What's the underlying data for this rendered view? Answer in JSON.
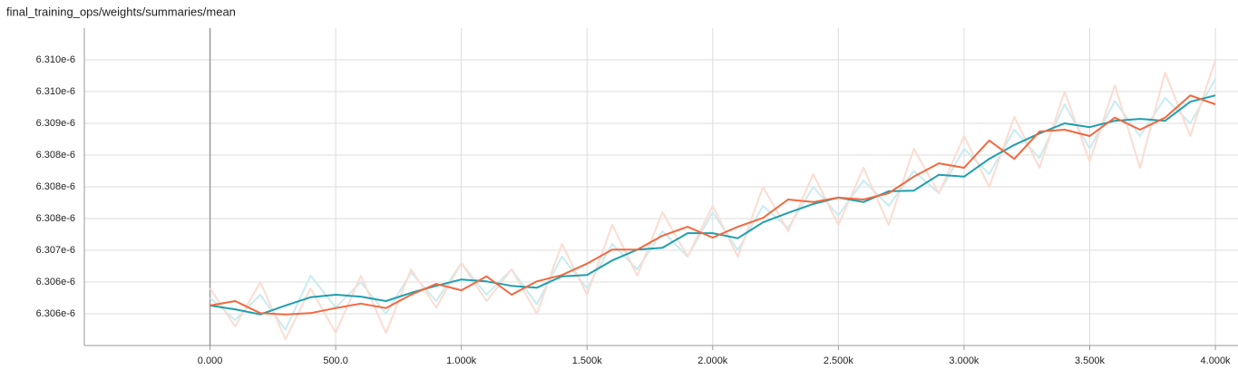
{
  "chart_data": {
    "type": "line",
    "title": "final_training_ops/weights/summaries/mean",
    "x": [
      0,
      100,
      200,
      300,
      400,
      500,
      600,
      700,
      800,
      900,
      1000,
      1100,
      1200,
      1300,
      1400,
      1500,
      1600,
      1700,
      1800,
      1900,
      2000,
      2100,
      2200,
      2300,
      2400,
      2500,
      2600,
      2700,
      2800,
      2900,
      3000,
      3100,
      3200,
      3300,
      3400,
      3500,
      3600,
      3700,
      3800,
      3900,
      4000
    ],
    "xlim": [
      -500,
      4090
    ],
    "xticks": [
      {
        "value": 0,
        "label": "0.000"
      },
      {
        "value": 500,
        "label": "500.0"
      },
      {
        "value": 1000,
        "label": "1.000k"
      },
      {
        "value": 1500,
        "label": "1.500k"
      },
      {
        "value": 2000,
        "label": "2.000k"
      },
      {
        "value": 2500,
        "label": "2.500k"
      },
      {
        "value": 3000,
        "label": "3.000k"
      },
      {
        "value": 3500,
        "label": "3.500k"
      },
      {
        "value": 4000,
        "label": "4.000k"
      }
    ],
    "ylim": [
      6.3055e-06,
      6.3105e-06
    ],
    "yticks": [
      {
        "value": 6.306e-06,
        "label": "6.306e-6"
      },
      {
        "value": 6.3065e-06,
        "label": "6.306e-6"
      },
      {
        "value": 6.307e-06,
        "label": "6.307e-6"
      },
      {
        "value": 6.3075e-06,
        "label": "6.308e-6"
      },
      {
        "value": 6.308e-06,
        "label": "6.308e-6"
      },
      {
        "value": 6.3085e-06,
        "label": "6.308e-6"
      },
      {
        "value": 6.309e-06,
        "label": "6.309e-6"
      },
      {
        "value": 6.3095e-06,
        "label": "6.310e-6"
      },
      {
        "value": 6.31e-06,
        "label": "6.310e-6"
      }
    ],
    "grid": true,
    "series": [
      {
        "color": "#c9ecf0",
        "values": [
          6.30625e-06,
          6.3059e-06,
          6.3063e-06,
          6.30575e-06,
          6.3066e-06,
          6.3061e-06,
          6.3065e-06,
          6.306e-06,
          6.30665e-06,
          6.3062e-06,
          6.3068e-06,
          6.3063e-06,
          6.3067e-06,
          6.30615e-06,
          6.3069e-06,
          6.3064e-06,
          6.3071e-06,
          6.3067e-06,
          6.3073e-06,
          6.3069e-06,
          6.3076e-06,
          6.307e-06,
          6.3077e-06,
          6.30735e-06,
          6.308e-06,
          6.30755e-06,
          6.3081e-06,
          6.3077e-06,
          6.30825e-06,
          6.3079e-06,
          6.3086e-06,
          6.3082e-06,
          6.3089e-06,
          6.30845e-06,
          6.3093e-06,
          6.3086e-06,
          6.30935e-06,
          6.3088e-06,
          6.3094e-06,
          6.309e-06,
          6.3097e-06
        ]
      },
      {
        "color": "#fcdcd2",
        "values": [
          6.3064e-06,
          6.3058e-06,
          6.3065e-06,
          6.3056e-06,
          6.3064e-06,
          6.3057e-06,
          6.3066e-06,
          6.3057e-06,
          6.3067e-06,
          6.3061e-06,
          6.3068e-06,
          6.3062e-06,
          6.3067e-06,
          6.306e-06,
          6.3071e-06,
          6.3063e-06,
          6.3074e-06,
          6.3066e-06,
          6.3076e-06,
          6.3069e-06,
          6.3077e-06,
          6.3069e-06,
          6.308e-06,
          6.3073e-06,
          6.3082e-06,
          6.3074e-06,
          6.3083e-06,
          6.3074e-06,
          6.3086e-06,
          6.3079e-06,
          6.3088e-06,
          6.308e-06,
          6.3091e-06,
          6.3083e-06,
          6.3095e-06,
          6.3084e-06,
          6.3096e-06,
          6.3083e-06,
          6.3098e-06,
          6.3088e-06,
          6.31e-06
        ]
      },
      {
        "color": "#1f9fad",
        "values": [
          6.30613e-06,
          6.30607e-06,
          6.30599e-06,
          6.30613e-06,
          6.30626e-06,
          6.3063e-06,
          6.30627e-06,
          6.3062e-06,
          6.30633e-06,
          6.30644e-06,
          6.30654e-06,
          6.30651e-06,
          6.30644e-06,
          6.30641e-06,
          6.30659e-06,
          6.30661e-06,
          6.30684e-06,
          6.30701e-06,
          6.30704e-06,
          6.30727e-06,
          6.30727e-06,
          6.30719e-06,
          6.30744e-06,
          6.30759e-06,
          6.30773e-06,
          6.30783e-06,
          6.30776e-06,
          6.30793e-06,
          6.30794e-06,
          6.30819e-06,
          6.30816e-06,
          6.30844e-06,
          6.30866e-06,
          6.30884e-06,
          6.309e-06,
          6.30894e-06,
          6.30904e-06,
          6.30907e-06,
          6.30904e-06,
          6.30934e-06,
          6.30944e-06
        ]
      },
      {
        "color": "#f3683f",
        "values": [
          6.30613e-06,
          6.3062e-06,
          6.30601e-06,
          6.30599e-06,
          6.30601e-06,
          6.30609e-06,
          6.30616e-06,
          6.30609e-06,
          6.3063e-06,
          6.30647e-06,
          6.30637e-06,
          6.30659e-06,
          6.3063e-06,
          6.30651e-06,
          6.30661e-06,
          6.30679e-06,
          6.30701e-06,
          6.30701e-06,
          6.30723e-06,
          6.30737e-06,
          6.3072e-06,
          6.30737e-06,
          6.30751e-06,
          6.3078e-06,
          6.30776e-06,
          6.30783e-06,
          6.3078e-06,
          6.3079e-06,
          6.30816e-06,
          6.30837e-06,
          6.3083e-06,
          6.30873e-06,
          6.30844e-06,
          6.30887e-06,
          6.3089e-06,
          6.3088e-06,
          6.30909e-06,
          6.3089e-06,
          6.30909e-06,
          6.30944e-06,
          6.3093e-06
        ]
      }
    ]
  }
}
